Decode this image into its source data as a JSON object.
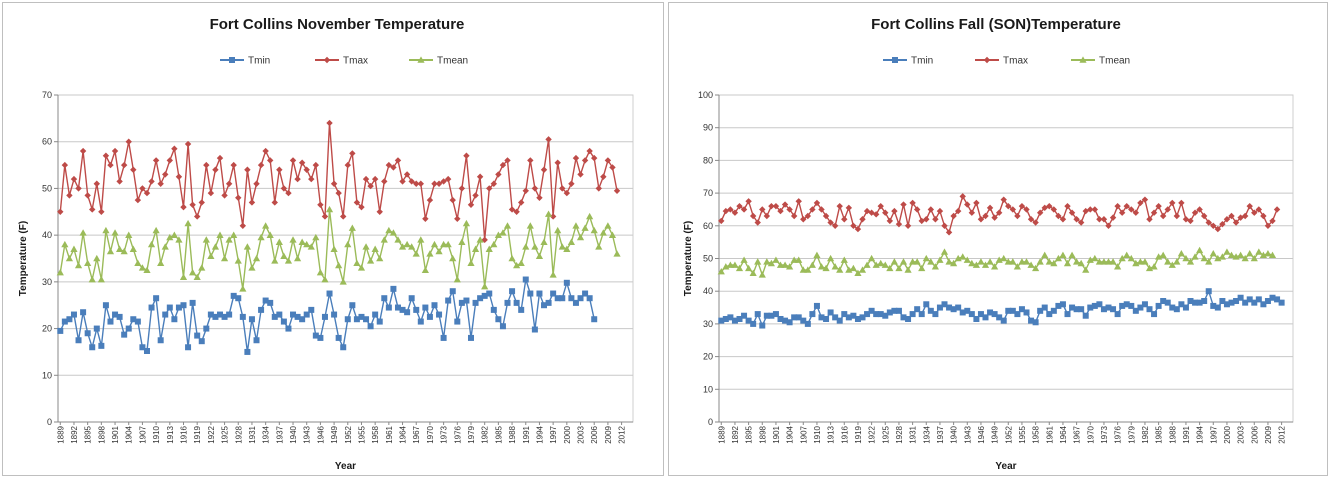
{
  "chart_data": [
    {
      "type": "line",
      "title": "Fort Collins November Temperature",
      "xlabel": "Year",
      "ylabel": "Temperature (F)",
      "ylim": [
        0,
        70
      ],
      "yticks": [
        0,
        10,
        20,
        30,
        40,
        50,
        60,
        70
      ],
      "x_start": 1889,
      "x_end": 2014,
      "x_tick_labels": [
        "1889",
        "1892",
        "1895",
        "1898",
        "1901",
        "1904",
        "1907",
        "1910",
        "1913",
        "1916",
        "1919",
        "1922",
        "1925",
        "1928",
        "1931",
        "1934",
        "1937",
        "1940",
        "1943",
        "1946",
        "1949",
        "1952",
        "1955",
        "1958",
        "1961",
        "1964",
        "1967",
        "1970",
        "1973",
        "1976",
        "1979",
        "1982",
        "1985",
        "1988",
        "1991",
        "1994",
        "1997",
        "2000",
        "2003",
        "2006",
        "2009",
        "2012"
      ],
      "grid": "horizontal",
      "legend": "top",
      "series": [
        {
          "name": "Tmin",
          "color": "#4a7ebb",
          "marker": "square",
          "values": [
            19.5,
            21.5,
            22,
            23,
            17.5,
            23.5,
            19,
            16,
            20,
            16.3,
            25,
            21.5,
            23,
            22.5,
            18.7,
            20,
            22,
            21.5,
            16,
            15.2,
            24.5,
            26.5,
            17.5,
            23,
            24.5,
            22,
            24.5,
            25,
            16,
            25.5,
            18.5,
            17.3,
            20,
            23,
            22.5,
            23,
            22.5,
            23,
            27,
            26.5,
            22.5,
            15,
            22,
            17.5,
            24,
            26,
            25.5,
            22.5,
            23,
            21.5,
            20,
            23,
            22.5,
            22,
            23,
            24,
            18.5,
            18,
            22.5,
            27.5,
            23,
            18,
            16,
            22,
            25,
            22,
            22.5,
            22,
            20.5,
            23,
            21.5,
            26.5,
            24.5,
            28.5,
            24.5,
            24,
            23.5,
            26.5,
            24,
            21.5,
            24.5,
            22.5,
            25,
            23,
            18,
            26,
            28,
            21.5,
            25.5,
            26,
            18,
            25.5,
            26.5,
            27,
            27.5,
            24,
            22,
            20.5,
            25.5,
            28,
            25.5,
            24,
            30.5,
            27.5,
            19.8,
            27.5,
            25,
            25.5,
            27.5,
            26.5,
            26.5,
            29.8,
            26.5,
            25.5,
            26.5,
            27.5,
            26.5,
            22
          ]
        },
        {
          "name": "Tmax",
          "color": "#be4b48",
          "marker": "diamond",
          "values": [
            45,
            55,
            48.5,
            52,
            50,
            58,
            48.5,
            45.5,
            51,
            45,
            57,
            55,
            58,
            51.5,
            55,
            60,
            54,
            47.5,
            50,
            49,
            51.5,
            56,
            51,
            53,
            56,
            58.5,
            52.5,
            46,
            59.5,
            46.5,
            44,
            47,
            55,
            49,
            54,
            56.5,
            48.5,
            51,
            55,
            48,
            42,
            54,
            47,
            51,
            55,
            58,
            56,
            47,
            54,
            50,
            49,
            56,
            52,
            55.5,
            54,
            52,
            55,
            46.5,
            44,
            64,
            51,
            49,
            44,
            55,
            57.5,
            47,
            46,
            52,
            50.5,
            52,
            45,
            51.5,
            55,
            54.5,
            56,
            51.5,
            53,
            51.5,
            51,
            51,
            43.5,
            47.5,
            51,
            51,
            51.5,
            52,
            47.5,
            43.5,
            50,
            57,
            46.5,
            48.5,
            52.5,
            39,
            50,
            51,
            53,
            55,
            56,
            45.5,
            45,
            47,
            49.5,
            56,
            50,
            48,
            54,
            60.5,
            44,
            55.5,
            50,
            49,
            51,
            56.5,
            53,
            56,
            58,
            56.5,
            50,
            52.5,
            56,
            54.5,
            49.5
          ]
        },
        {
          "name": "Tmean",
          "color": "#9bbb59",
          "marker": "triangle",
          "values": [
            32,
            38,
            35,
            37,
            33.5,
            40.5,
            34,
            30.5,
            35,
            30.5,
            41,
            36.5,
            40.5,
            37,
            36.5,
            40,
            37,
            34,
            33,
            32.5,
            38,
            41,
            34,
            37.5,
            39.5,
            40,
            39,
            31,
            42.5,
            32,
            31,
            33,
            39,
            35.5,
            37.5,
            40,
            35,
            39,
            40,
            34.5,
            28.5,
            37.5,
            33,
            35,
            39.5,
            42,
            40,
            34.5,
            38.5,
            35.5,
            34.5,
            39,
            35,
            38.5,
            38,
            37.5,
            39.5,
            32,
            30.5,
            45.5,
            37,
            33.5,
            30,
            38,
            41.5,
            34,
            33,
            37.5,
            34.5,
            37,
            35,
            39,
            41,
            40.5,
            39,
            37.5,
            38,
            37.5,
            36,
            39,
            32.5,
            36,
            38,
            36.5,
            38,
            38,
            35,
            30.5,
            38.5,
            42.5,
            34,
            37,
            39,
            29,
            37,
            38,
            40,
            40.5,
            42,
            35,
            33.5,
            34,
            37.5,
            42,
            37.5,
            35.5,
            38.5,
            44.5,
            31.5,
            41,
            37.5,
            37,
            38.5,
            42,
            39.5,
            41.5,
            44,
            41,
            37.5,
            40.5,
            42,
            40,
            36
          ]
        }
      ]
    },
    {
      "type": "line",
      "title": "Fort Collins Fall (SON)Temperature",
      "xlabel": "Year",
      "ylabel": "Temperature (F)",
      "ylim": [
        0,
        100
      ],
      "yticks": [
        0,
        10,
        20,
        30,
        40,
        50,
        60,
        70,
        80,
        90,
        100
      ],
      "x_start": 1889,
      "x_end": 2014,
      "x_tick_labels": [
        "1889",
        "1892",
        "1895",
        "1898",
        "1901",
        "1904",
        "1907",
        "1910",
        "1913",
        "1916",
        "1919",
        "1922",
        "1925",
        "1928",
        "1931",
        "1934",
        "1937",
        "1940",
        "1943",
        "1946",
        "1949",
        "1952",
        "1955",
        "1958",
        "1961",
        "1964",
        "1967",
        "1970",
        "1973",
        "1976",
        "1979",
        "1982",
        "1985",
        "1988",
        "1991",
        "1994",
        "1997",
        "2000",
        "2003",
        "2006",
        "2009",
        "2012"
      ],
      "grid": "horizontal",
      "legend": "top",
      "series": [
        {
          "name": "Tmin",
          "color": "#4a7ebb",
          "marker": "square",
          "values": [
            31,
            31.5,
            32,
            31,
            31.5,
            32.5,
            31,
            30,
            33,
            29.5,
            32.5,
            32.5,
            33,
            31.5,
            31,
            30.5,
            32,
            32,
            31,
            30,
            33,
            35.5,
            32,
            31.5,
            33.5,
            32,
            31,
            33,
            32,
            32.5,
            31.5,
            32,
            33,
            34,
            33,
            33,
            32.5,
            33.5,
            34,
            34,
            32,
            31.5,
            33,
            34.5,
            33,
            36,
            34,
            33,
            35,
            36,
            35,
            34.5,
            35,
            33.5,
            34,
            33,
            31.5,
            33,
            32,
            33.5,
            33,
            32,
            31,
            34,
            34,
            33,
            34.5,
            33.5,
            31,
            30.5,
            34,
            35,
            33,
            34,
            35.5,
            36,
            33,
            35,
            34.5,
            34.5,
            32.5,
            35,
            35.5,
            36,
            34.5,
            35,
            34.5,
            33,
            35.5,
            36,
            35.5,
            34,
            35,
            36,
            34.5,
            33,
            35.5,
            37,
            36.5,
            35,
            34.5,
            36,
            35,
            37,
            36.5,
            36.5,
            37,
            40,
            35.5,
            35,
            37,
            36,
            36.5,
            37,
            38,
            36.5,
            37.5,
            36.5,
            37.5,
            36,
            37,
            38,
            37.5,
            36.5
          ]
        },
        {
          "name": "Tmax",
          "color": "#be4b48",
          "marker": "diamond",
          "values": [
            61.5,
            64.5,
            65,
            64,
            66,
            65,
            67.5,
            63,
            61,
            65,
            63,
            66,
            66,
            64.5,
            66.5,
            65,
            63,
            67.5,
            62,
            63,
            65,
            67,
            65,
            63,
            61,
            60,
            66,
            62,
            65.5,
            60,
            59,
            62,
            64.5,
            64,
            63.5,
            66,
            64,
            61.5,
            64.5,
            60.5,
            66.5,
            60,
            67,
            65,
            61.5,
            62,
            65,
            62,
            64.5,
            60,
            58,
            63,
            64.5,
            69,
            66.5,
            64,
            67,
            62,
            63,
            65.5,
            62.5,
            64,
            68,
            66,
            65,
            63,
            66,
            65,
            62,
            61,
            64,
            65.5,
            66,
            65,
            63,
            62,
            66,
            64,
            62,
            61,
            64.5,
            65,
            65,
            62,
            62,
            60,
            62.5,
            66,
            64,
            66,
            65,
            64,
            67,
            68,
            62,
            64,
            66,
            63,
            65,
            67,
            63,
            67,
            62,
            61.5,
            64,
            65,
            63,
            61,
            60,
            59,
            60.5,
            62,
            63,
            61,
            62.5,
            63,
            66,
            64,
            65,
            63,
            60,
            61.5,
            65
          ]
        },
        {
          "name": "Tmean",
          "color": "#9bbb59",
          "marker": "triangle",
          "values": [
            46,
            47.5,
            48,
            48,
            47,
            49.5,
            47,
            45.5,
            49,
            45,
            49,
            48.5,
            49.5,
            48,
            48,
            47.5,
            49.5,
            49.5,
            46.5,
            46.5,
            48,
            51,
            47.5,
            47,
            50,
            47.5,
            46.5,
            49.5,
            46.5,
            47,
            45.5,
            46.5,
            48,
            50,
            48,
            48.5,
            48,
            47,
            49,
            47,
            49,
            46.5,
            49,
            49,
            47,
            50,
            49,
            47.5,
            49.5,
            52,
            49,
            48.5,
            50,
            50.5,
            49.5,
            48.5,
            48,
            49,
            48,
            49,
            47.5,
            49.5,
            50,
            49,
            49,
            47.5,
            49,
            49,
            48,
            47,
            49,
            51,
            49,
            48.5,
            50,
            51,
            48.5,
            51,
            49,
            48.5,
            46.5,
            49.5,
            50,
            49,
            49,
            49,
            49,
            47.5,
            50,
            51,
            50,
            48.5,
            49,
            49,
            47,
            47.5,
            50.5,
            51,
            49,
            48,
            49,
            51.5,
            50,
            49,
            50.5,
            52.5,
            50,
            49,
            51.5,
            50,
            50.5,
            52,
            51,
            50.5,
            51,
            50,
            51.5,
            50,
            52,
            51,
            51.5,
            51
          ]
        }
      ]
    }
  ]
}
